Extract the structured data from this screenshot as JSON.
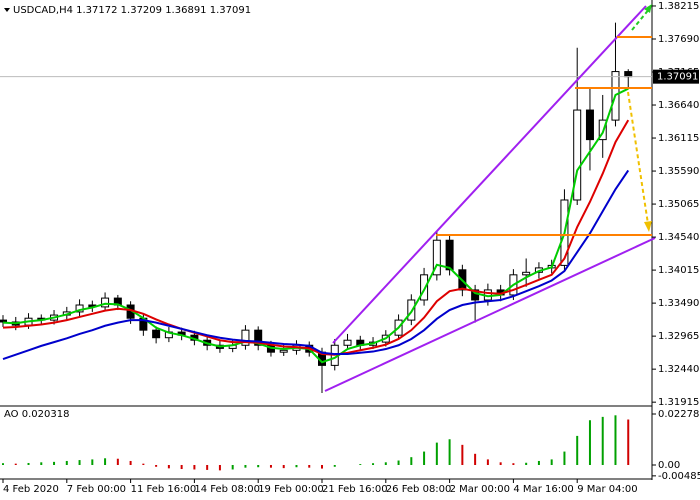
{
  "chart_data": {
    "type": "candlestick",
    "title": "USDCAD,H4  1.37172 1.37209 1.36891 1.37091",
    "categories": [
      "4 Feb 2020",
      null,
      null,
      null,
      null,
      "7 Feb 00:00",
      null,
      null,
      null,
      null,
      "11 Feb 16:00",
      null,
      null,
      null,
      null,
      "14 Feb 08:00",
      null,
      null,
      null,
      null,
      "19 Feb 00:00",
      null,
      null,
      null,
      null,
      "21 Feb 16:00",
      null,
      null,
      null,
      null,
      "26 Feb 08:00",
      null,
      null,
      null,
      null,
      "2 Mar 00:00",
      null,
      null,
      null,
      null,
      "4 Mar 16:00",
      null,
      null,
      null,
      null,
      "9 Mar 04:00",
      null,
      null,
      null,
      null
    ],
    "open": [
      1.3322,
      1.3319,
      1.3314,
      1.3325,
      1.3322,
      1.333,
      1.3335,
      1.3346,
      1.3343,
      1.3357,
      1.3346,
      1.3325,
      1.3306,
      1.3294,
      1.3303,
      1.3298,
      1.329,
      1.3282,
      1.3277,
      1.3282,
      1.3306,
      1.3282,
      1.3271,
      1.3274,
      1.3282,
      1.3271,
      1.325,
      1.3282,
      1.329,
      1.3282,
      1.3287,
      1.3298,
      1.3322,
      1.3354,
      1.3394,
      1.3449,
      1.3402,
      1.337,
      1.3354,
      1.337,
      1.3362,
      1.3394,
      1.3398,
      1.3405,
      1.3409,
      1.3513,
      1.3656,
      1.3609,
      1.364,
      1.37172
    ],
    "high": [
      1.333,
      1.3327,
      1.3333,
      1.3331,
      1.3338,
      1.3343,
      1.3355,
      1.3353,
      1.3366,
      1.3362,
      1.3352,
      1.3333,
      1.3312,
      1.3311,
      1.331,
      1.3305,
      1.3297,
      1.329,
      1.3291,
      1.3314,
      1.3312,
      1.3289,
      1.3283,
      1.329,
      1.3288,
      1.3278,
      1.3292,
      1.33,
      1.3297,
      1.3295,
      1.3306,
      1.3331,
      1.3363,
      1.3405,
      1.3462,
      1.3458,
      1.341,
      1.3378,
      1.338,
      1.3378,
      1.3403,
      1.342,
      1.3414,
      1.3418,
      1.353,
      1.3755,
      1.369,
      1.368,
      1.3795,
      1.37209
    ],
    "low": [
      1.3311,
      1.3306,
      1.3308,
      1.3315,
      1.3315,
      1.3322,
      1.3328,
      1.3335,
      1.3336,
      1.3338,
      1.3316,
      1.3297,
      1.3285,
      1.3287,
      1.329,
      1.3282,
      1.3274,
      1.327,
      1.3271,
      1.3275,
      1.3274,
      1.3264,
      1.3265,
      1.3267,
      1.3264,
      1.3206,
      1.3242,
      1.3275,
      1.3274,
      1.3276,
      1.328,
      1.3291,
      1.3314,
      1.3345,
      1.3385,
      1.3393,
      1.336,
      1.3318,
      1.3345,
      1.3352,
      1.3354,
      1.3375,
      1.3388,
      1.3396,
      1.34,
      1.3505,
      1.356,
      1.358,
      1.363,
      1.36891
    ],
    "close": [
      1.3319,
      1.3314,
      1.3325,
      1.3322,
      1.333,
      1.3335,
      1.3346,
      1.3343,
      1.3357,
      1.3346,
      1.3325,
      1.3306,
      1.3294,
      1.3303,
      1.3298,
      1.329,
      1.3282,
      1.3277,
      1.3282,
      1.3306,
      1.3282,
      1.3271,
      1.3274,
      1.3282,
      1.3271,
      1.325,
      1.3282,
      1.329,
      1.3282,
      1.3287,
      1.3298,
      1.3322,
      1.3354,
      1.3394,
      1.3449,
      1.3402,
      1.337,
      1.3354,
      1.337,
      1.3362,
      1.3394,
      1.3398,
      1.3405,
      1.3409,
      1.3513,
      1.3656,
      1.3609,
      1.364,
      1.37172,
      1.37091
    ],
    "up_color": "#ffffff",
    "down_color": "#000000",
    "lines": [
      {
        "color": "#00cc00",
        "values": [
          1.3318,
          1.3317,
          1.332,
          1.3322,
          1.3326,
          1.3331,
          1.3338,
          1.3342,
          1.3348,
          1.3347,
          1.3338,
          1.3325,
          1.331,
          1.3302,
          1.3298,
          1.3292,
          1.3285,
          1.328,
          1.3282,
          1.3288,
          1.3285,
          1.3278,
          1.3276,
          1.3278,
          1.3276,
          1.3255,
          1.3262,
          1.3276,
          1.3282,
          1.3285,
          1.3293,
          1.331,
          1.3335,
          1.337,
          1.341,
          1.3405,
          1.3385,
          1.3365,
          1.336,
          1.3362,
          1.3378,
          1.339,
          1.34,
          1.3406,
          1.346,
          1.356,
          1.359,
          1.362,
          1.368,
          1.369
        ]
      },
      {
        "color": "#dd0000",
        "values": [
          1.331,
          1.3311,
          1.3313,
          1.3315,
          1.3318,
          1.3322,
          1.3327,
          1.3332,
          1.3337,
          1.334,
          1.3338,
          1.3332,
          1.3323,
          1.3315,
          1.3308,
          1.3302,
          1.3296,
          1.329,
          1.3287,
          1.3287,
          1.3286,
          1.3283,
          1.328,
          1.3279,
          1.3277,
          1.3268,
          1.3267,
          1.327,
          1.3274,
          1.3278,
          1.3283,
          1.3292,
          1.3306,
          1.3326,
          1.3352,
          1.3368,
          1.3372,
          1.3368,
          1.3365,
          1.3364,
          1.337,
          1.3378,
          1.3386,
          1.3394,
          1.342,
          1.347,
          1.351,
          1.3555,
          1.3605,
          1.364
        ]
      },
      {
        "color": "#0000cc",
        "values": [
          1.326,
          1.3267,
          1.3274,
          1.3281,
          1.3287,
          1.3293,
          1.33,
          1.3306,
          1.3313,
          1.3318,
          1.3322,
          1.3322,
          1.3318,
          1.3313,
          1.3308,
          1.3303,
          1.3298,
          1.3294,
          1.3291,
          1.3289,
          1.3288,
          1.3286,
          1.3284,
          1.3283,
          1.3281,
          1.327,
          1.3268,
          1.3268,
          1.327,
          1.3272,
          1.3276,
          1.3282,
          1.3292,
          1.3306,
          1.3324,
          1.3338,
          1.3346,
          1.335,
          1.3352,
          1.3354,
          1.336,
          1.3368,
          1.3376,
          1.3385,
          1.34,
          1.343,
          1.346,
          1.3495,
          1.353,
          1.356
        ]
      }
    ],
    "ylim": [
      1.3187,
      1.3831
    ],
    "yticks": [
      1.38215,
      {
        "value": 1.3769,
        "label": "1.37690"
      },
      1.37165,
      {
        "value": 1.3664,
        "label": "1.36640"
      },
      1.36115,
      {
        "value": 1.3559,
        "label": "1.35590"
      },
      1.35065,
      {
        "value": 1.3454,
        "label": "1.34540"
      },
      1.34015,
      {
        "value": 1.3349,
        "label": "1.33490"
      },
      1.32965,
      {
        "value": 1.3244,
        "label": "1.32440"
      },
      1.31915
    ],
    "bid": 1.37091,
    "indicator": {
      "type": "bar",
      "title": "AO 0.020318",
      "values": [
        0.0008,
        0.0006,
        0.0009,
        0.0012,
        0.0014,
        0.0018,
        0.0022,
        0.0025,
        0.003,
        0.0028,
        0.0018,
        0.0006,
        -0.0008,
        -0.0015,
        -0.0018,
        -0.002,
        -0.0022,
        -0.0024,
        -0.002,
        -0.0012,
        -0.001,
        -0.0012,
        -0.0014,
        -0.001,
        -0.0012,
        -0.0016,
        -0.0008,
        0.0,
        0.0004,
        0.0008,
        0.0012,
        0.002,
        0.0035,
        0.006,
        0.01,
        0.0115,
        0.009,
        0.005,
        0.0025,
        0.0012,
        0.0008,
        0.001,
        0.0018,
        0.0025,
        0.006,
        0.013,
        0.02,
        0.0215,
        0.0222,
        0.020318
      ],
      "up_color": "#00a000",
      "down_color": "#d00000",
      "ylim": [
        -0.00581,
        0.02591
      ],
      "yticks": [
        0.022781,
        {
          "value": 0,
          "label": "0.00"
        },
        -0.004852
      ]
    }
  }
}
